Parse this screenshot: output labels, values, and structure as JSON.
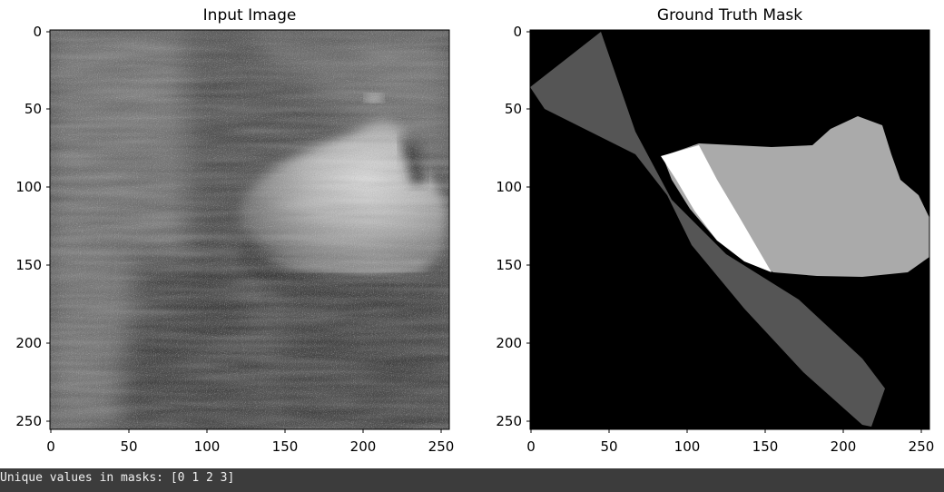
{
  "figure": {
    "panels": [
      {
        "title": "Input Image",
        "x_ticks": [
          "0",
          "50",
          "100",
          "150",
          "200",
          "250"
        ],
        "y_ticks": [
          "0",
          "50",
          "100",
          "150",
          "200",
          "250"
        ]
      },
      {
        "title": "Ground Truth Mask",
        "x_ticks": [
          "0",
          "50",
          "100",
          "150",
          "200",
          "250"
        ],
        "y_ticks": [
          "0",
          "50",
          "100",
          "150",
          "200",
          "250"
        ]
      }
    ]
  },
  "console": {
    "output": "Unique values in masks: [0 1 2 3]"
  },
  "colors": {
    "mask_background": "#000000",
    "mask_class_1": "#555555",
    "mask_class_2": "#aaaaaa",
    "mask_class_3": "#ffffff",
    "console_bg": "#3c3c3c"
  }
}
